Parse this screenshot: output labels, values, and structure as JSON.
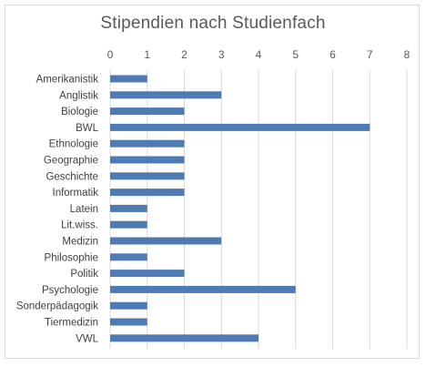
{
  "chart_data": {
    "type": "bar",
    "orientation": "horizontal",
    "title": "Stipendien nach Studienfach",
    "xlabel": "",
    "ylabel": "",
    "xlim": [
      0,
      8
    ],
    "ticks": [
      0,
      1,
      2,
      3,
      4,
      5,
      6,
      7,
      8
    ],
    "tick_labels": [
      "0",
      "1",
      "2",
      "3",
      "4",
      "5",
      "6",
      "7",
      "8"
    ],
    "tick_position": "top",
    "grid": true,
    "legend": "none",
    "bar_color": "#4f7bb5",
    "grid_color": "#d9d9d9",
    "categories": [
      "Amerikanistik",
      "Anglistik",
      "Biologie",
      "BWL",
      "Ethnologie",
      "Geographie",
      "Geschichte",
      "Informatik",
      "Latein",
      "Lit.wiss.",
      "Medizin",
      "Philosophie",
      "Politik",
      "Psychologie",
      "Sonderpädagogik",
      "Tiermedizin",
      "VWL"
    ],
    "values": [
      1,
      3,
      2,
      7,
      2,
      2,
      2,
      2,
      1,
      1,
      3,
      1,
      2,
      5,
      1,
      1,
      4
    ]
  }
}
